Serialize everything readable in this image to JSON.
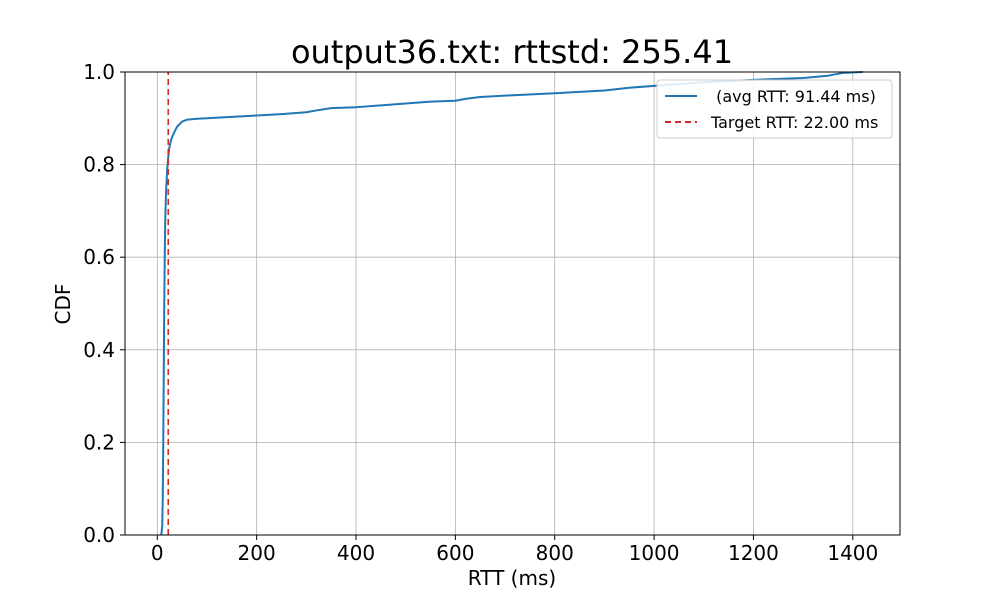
{
  "chart_data": {
    "type": "line",
    "title": "output36.txt: rttstd: 255.41",
    "xlabel": "RTT (ms)",
    "ylabel": "CDF",
    "xlim": [
      -65,
      1495
    ],
    "ylim": [
      0.0,
      1.0
    ],
    "xticks": [
      0,
      200,
      400,
      600,
      800,
      1000,
      1200,
      1400
    ],
    "xtick_labels": [
      "0",
      "200",
      "400",
      "600",
      "800",
      "1000",
      "1200",
      "1400"
    ],
    "yticks": [
      0.0,
      0.2,
      0.4,
      0.6,
      0.8,
      1.0
    ],
    "ytick_labels": [
      "0.0",
      "0.2",
      "0.4",
      "0.6",
      "0.8",
      "1.0"
    ],
    "grid": true,
    "legend_position": "top-right",
    "series": [
      {
        "name": " (avg RTT: 91.44 ms)",
        "color": "#1f77b4",
        "style": "solid",
        "x": [
          8,
          10,
          11,
          12,
          13,
          14,
          15,
          16,
          17,
          18,
          19,
          20,
          22,
          24,
          27,
          30,
          35,
          40,
          50,
          60,
          80,
          100,
          150,
          200,
          250,
          300,
          320,
          350,
          400,
          450,
          500,
          550,
          600,
          620,
          650,
          700,
          800,
          900,
          950,
          1000,
          1100,
          1200,
          1300,
          1350,
          1380,
          1420
        ],
        "y": [
          0.0,
          0.02,
          0.08,
          0.2,
          0.35,
          0.5,
          0.6,
          0.68,
          0.72,
          0.75,
          0.77,
          0.79,
          0.815,
          0.835,
          0.85,
          0.86,
          0.872,
          0.882,
          0.893,
          0.897,
          0.899,
          0.9,
          0.903,
          0.906,
          0.909,
          0.913,
          0.917,
          0.922,
          0.924,
          0.928,
          0.932,
          0.936,
          0.938,
          0.942,
          0.946,
          0.949,
          0.954,
          0.96,
          0.966,
          0.97,
          0.978,
          0.983,
          0.987,
          0.992,
          0.998,
          1.0
        ]
      },
      {
        "name": "Target RTT: 22.00 ms",
        "color": "#d62728",
        "style": "dashed",
        "x": [
          22,
          22
        ],
        "y": [
          0.0,
          1.0
        ]
      }
    ]
  }
}
